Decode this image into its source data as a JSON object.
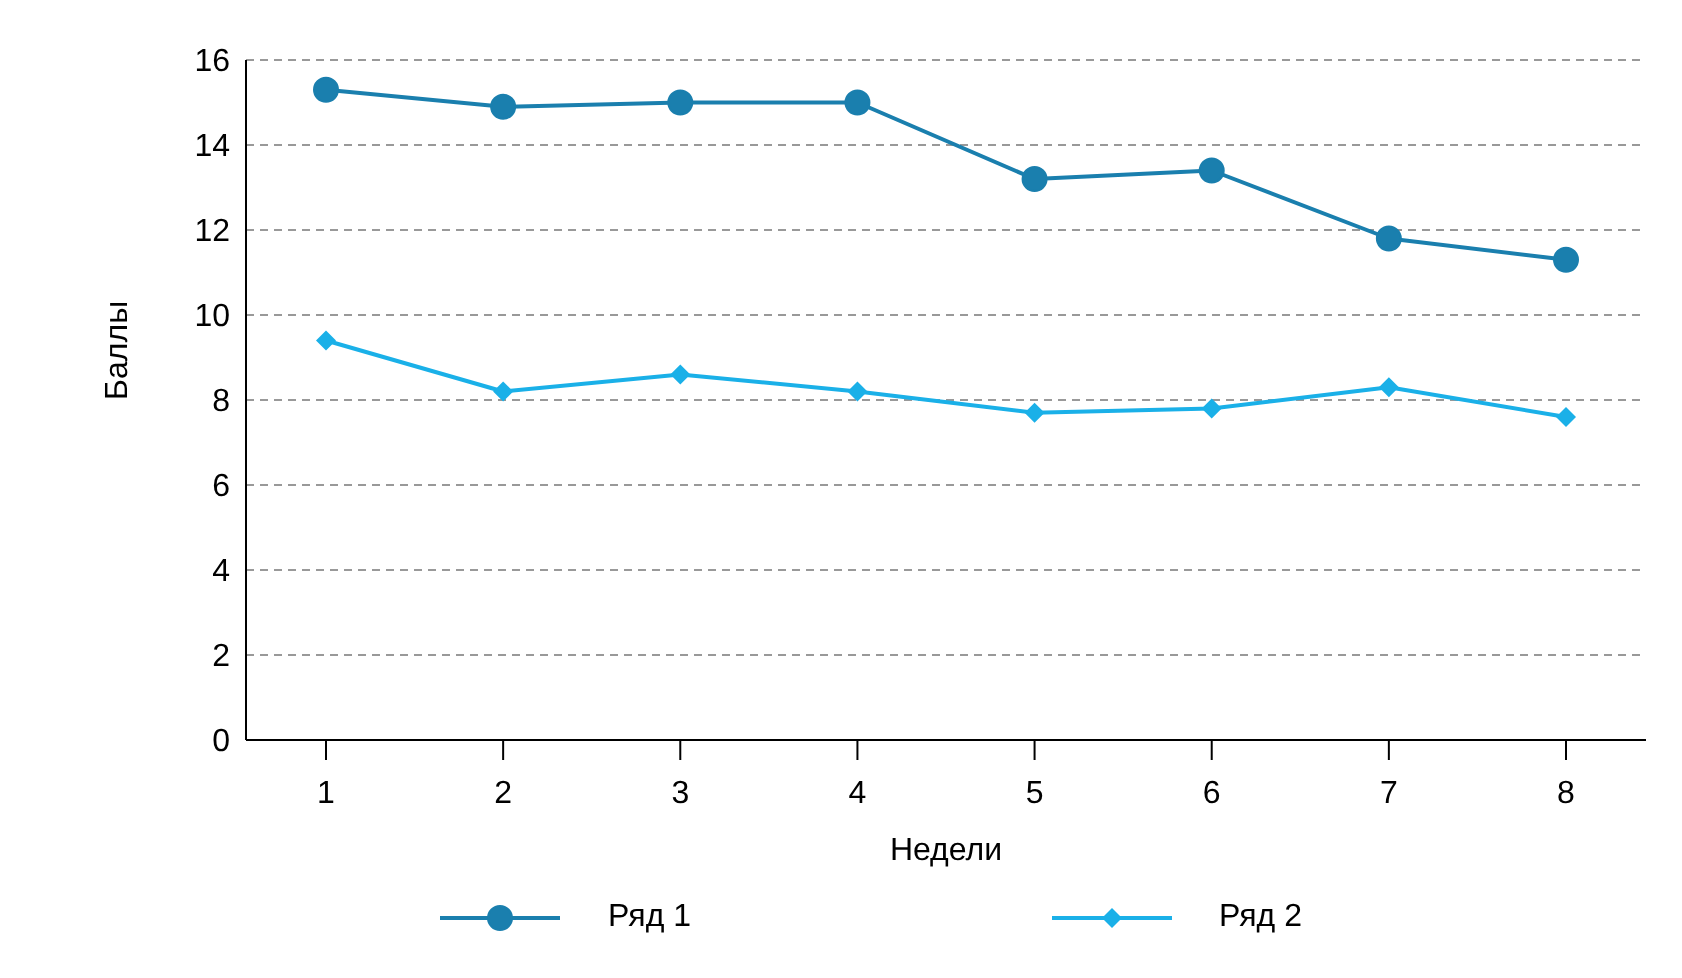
{
  "chart_data": {
    "type": "line",
    "xlabel": "Недели",
    "ylabel": "Баллы",
    "categories": [
      "1",
      "2",
      "3",
      "4",
      "5",
      "6",
      "7",
      "8"
    ],
    "series": [
      {
        "name": "Ряд 1",
        "color": "#1a7fae",
        "marker": "circle",
        "values": [
          15.3,
          14.9,
          15.0,
          15.0,
          13.2,
          13.4,
          11.8,
          11.3
        ]
      },
      {
        "name": "Ряд 2",
        "color": "#1ab0e8",
        "marker": "diamond",
        "values": [
          9.4,
          8.2,
          8.6,
          8.2,
          7.7,
          7.8,
          8.3,
          7.6
        ]
      }
    ],
    "ylim": [
      0,
      16
    ],
    "yticks": [
      0,
      2,
      4,
      6,
      8,
      10,
      12,
      14,
      16
    ],
    "grid": "y",
    "legend": "bottom",
    "line_style": "solid"
  }
}
